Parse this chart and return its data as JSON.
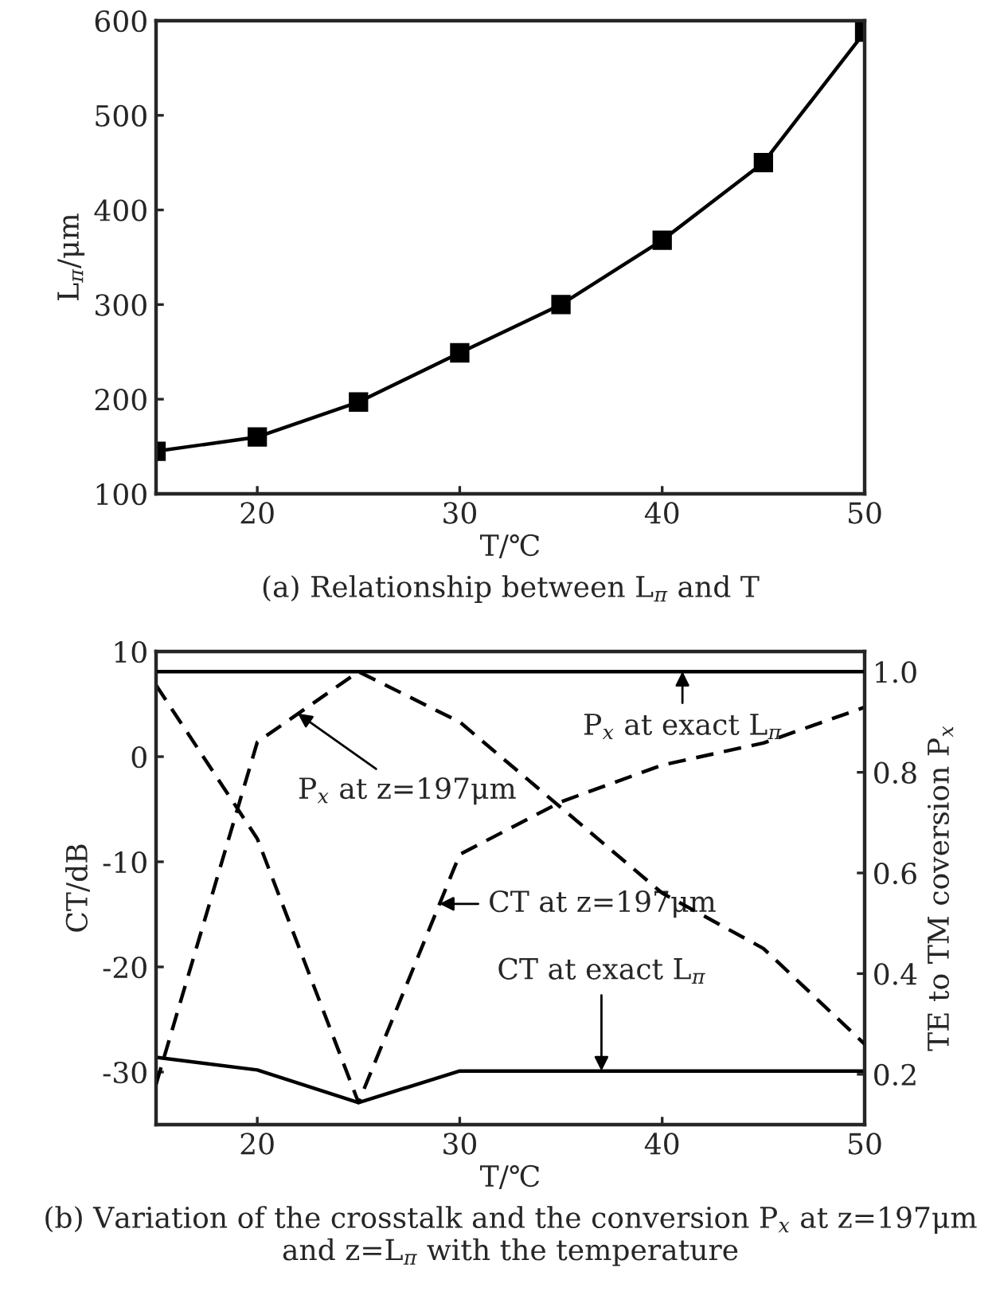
{
  "chart_data": [
    {
      "type": "line",
      "title": "(a) Relationship between L$_{π}$ and T",
      "xlabel": "T/℃",
      "ylabel": "L$_{π}$/μm",
      "x": [
        15,
        20,
        25,
        30,
        35,
        40,
        45,
        50
      ],
      "series": [
        {
          "color": "#000000",
          "values": [
            145,
            160,
            197,
            249,
            300,
            368,
            450,
            588
          ]
        }
      ],
      "marker": "square",
      "line_style": "solid",
      "xlim": [
        15,
        50
      ],
      "xticks": [
        {
          "value": 15,
          "label": null
        },
        20,
        30,
        40,
        50
      ],
      "ylim": [
        100,
        600
      ],
      "yticks": [
        100,
        200,
        300,
        400,
        500,
        600
      ],
      "grid": false,
      "legend": false
    },
    {
      "type": "line",
      "title": "(b) Variation of the crosstalk and the conversion P$_{x}$ at z=197μm and z=L$_{π}$ with the temperature",
      "xlabel": "T/℃",
      "ylabel": "CT/dB",
      "y2label": "TE to TM coversion P$_{x}$",
      "x": [
        15,
        20,
        25,
        30,
        35,
        40,
        45,
        50
      ],
      "series": [
        {
          "color": "#000000",
          "line_style": "solid",
          "axis": "y2",
          "values": [
            1.0,
            1.0,
            1.0,
            1.0,
            1.0,
            1.0,
            1.0,
            1.0
          ]
        },
        {
          "color": "#000000",
          "line_style": "solid",
          "values": [
            -28.6,
            -29.8,
            -32.9,
            -29.9,
            -29.9,
            -29.9,
            -29.9,
            -29.9
          ]
        },
        {
          "color": "#000000",
          "line_style": "dashed",
          "values": [
            6.8,
            -7.8,
            -32.9,
            -9.3,
            -4.3,
            -0.8,
            1.3,
            4.7
          ]
        },
        {
          "color": "#000000",
          "line_style": "dashed",
          "axis": "y2",
          "values": [
            0.18,
            0.86,
            1.0,
            0.9,
            0.73,
            0.56,
            0.45,
            0.26
          ]
        }
      ],
      "annotations": [
        {
          "text": "P$_{x}$ at exact L$_{π}$",
          "x": 41,
          "y": 8.1
        },
        {
          "text": "P$_{x}$ at z=197μm",
          "x": 22,
          "y": 4.1
        },
        {
          "text": "CT at z=197μm",
          "x": 29,
          "y": -14
        },
        {
          "text": "CT at exact L$_{π}$",
          "x": 37,
          "y": -29.9
        }
      ],
      "marker": "none",
      "xlim": [
        15,
        50
      ],
      "xticks": [
        {
          "value": 15,
          "label": null
        },
        20,
        30,
        40,
        50
      ],
      "ylim": [
        -35,
        10
      ],
      "yticks": [
        -30,
        -20,
        -10,
        0,
        10
      ],
      "y2lim": [
        0.1,
        1.04
      ],
      "y2ticks": [
        0.2,
        0.4,
        0.6,
        0.8,
        {
          "value": 1,
          "label": "1.0"
        }
      ],
      "grid": false,
      "legend": false
    }
  ]
}
